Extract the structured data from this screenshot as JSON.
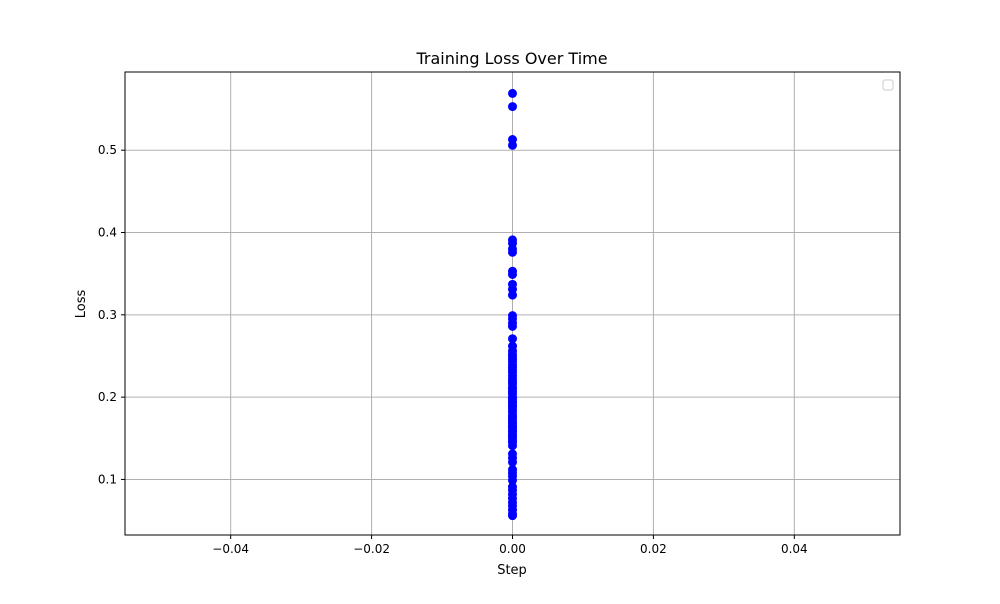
{
  "chart_data": {
    "type": "scatter",
    "title": "Training Loss Over Time",
    "xlabel": "Step",
    "ylabel": "Loss",
    "xlim": [
      -0.055,
      0.055
    ],
    "ylim": [
      0.0325,
      0.595
    ],
    "xticks": [
      -0.04,
      -0.02,
      0.0,
      0.02,
      0.04
    ],
    "xtick_labels": [
      "−0.04",
      "−0.02",
      "0.00",
      "0.02",
      "0.04"
    ],
    "yticks": [
      0.1,
      0.2,
      0.3,
      0.4,
      0.5
    ],
    "ytick_labels": [
      "0.1",
      "0.2",
      "0.3",
      "0.4",
      "0.5"
    ],
    "grid": true,
    "legend_location": "upper right",
    "legend_entries": [],
    "marker_color": "#0000ff",
    "grid_color": "#b0b0b0",
    "series": [
      {
        "x": [
          0,
          0,
          0,
          0,
          0,
          0,
          0,
          0,
          0,
          0,
          0,
          0,
          0,
          0,
          0,
          0,
          0,
          0,
          0,
          0,
          0,
          0,
          0,
          0,
          0,
          0,
          0,
          0,
          0,
          0,
          0,
          0,
          0,
          0,
          0,
          0,
          0,
          0,
          0,
          0,
          0,
          0,
          0,
          0,
          0,
          0,
          0,
          0,
          0,
          0,
          0,
          0,
          0,
          0,
          0,
          0,
          0,
          0,
          0,
          0,
          0,
          0,
          0,
          0,
          0,
          0,
          0,
          0,
          0,
          0,
          0,
          0,
          0,
          0,
          0
        ],
        "y": [
          0.569,
          0.553,
          0.513,
          0.506,
          0.391,
          0.387,
          0.38,
          0.376,
          0.353,
          0.349,
          0.337,
          0.331,
          0.324,
          0.299,
          0.295,
          0.29,
          0.286,
          0.271,
          0.262,
          0.256,
          0.249,
          0.243,
          0.236,
          0.23,
          0.222,
          0.216,
          0.21,
          0.204,
          0.198,
          0.193,
          0.188,
          0.182,
          0.176,
          0.17,
          0.165,
          0.16,
          0.155,
          0.15,
          0.145,
          0.141,
          0.131,
          0.126,
          0.121,
          0.112,
          0.108,
          0.104,
          0.099,
          0.091,
          0.087,
          0.082,
          0.077,
          0.072,
          0.068,
          0.063,
          0.058,
          0.056,
          0.147,
          0.153,
          0.158,
          0.163,
          0.168,
          0.173,
          0.178,
          0.185,
          0.19,
          0.195,
          0.2,
          0.207,
          0.212,
          0.219,
          0.226,
          0.233,
          0.239,
          0.246,
          0.252
        ]
      }
    ]
  }
}
